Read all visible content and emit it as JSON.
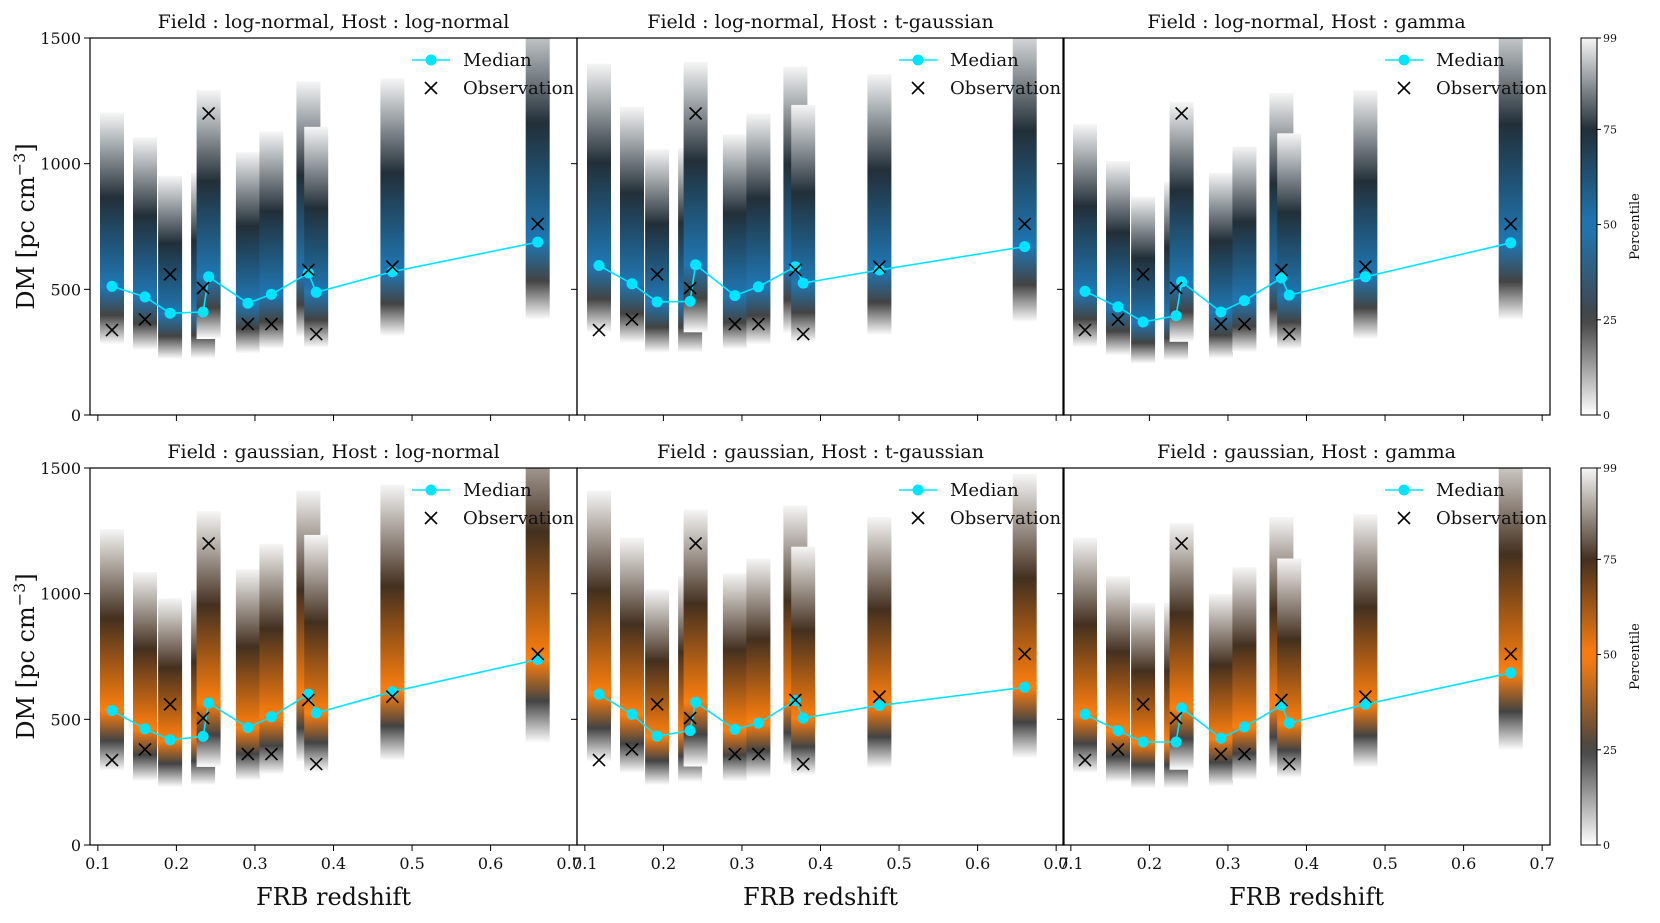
{
  "chart_data": {
    "type": "scatter",
    "layout": "2 rows x 3 columns",
    "xlabel": "FRB redshift",
    "ylabel": "DM [pc cm",
    "ylabel_exponent": "−3",
    "ylabel_close": "]",
    "xlim": [
      0.09,
      0.71
    ],
    "ylim": [
      0,
      1500
    ],
    "xticks": [
      0.1,
      0.2,
      0.3,
      0.4,
      0.5,
      0.6,
      0.7
    ],
    "xtick_labels": [
      "0.1",
      "0.2",
      "0.3",
      "0.4",
      "0.5",
      "0.6",
      "0.7"
    ],
    "yticks": [
      0,
      500,
      1000,
      1500
    ],
    "ytick_labels": [
      "0",
      "500",
      "1000",
      "1500"
    ],
    "redshift": [
      0.118,
      0.16,
      0.192,
      0.234,
      0.241,
      0.291,
      0.321,
      0.368,
      0.378,
      0.475,
      0.66
    ],
    "observation_dm": [
      338,
      380,
      560,
      505,
      1200,
      362,
      362,
      577,
      322,
      590,
      760
    ],
    "legend": {
      "median": "Median",
      "observation": "Observation"
    },
    "colorbars": [
      {
        "label": "Percentile",
        "color": "#1f77b4",
        "ticks": [
          0,
          25,
          50,
          75,
          99
        ],
        "tick_labels": [
          "0",
          "25",
          "50",
          "75",
          "99"
        ]
      },
      {
        "label": "Percentile",
        "color": "#ff7f0e",
        "ticks": [
          0,
          25,
          50,
          75,
          99
        ],
        "tick_labels": [
          "0",
          "25",
          "50",
          "75",
          "99"
        ]
      }
    ],
    "panels": [
      {
        "title": "Field :  log-normal, Host :  log-normal",
        "row": 0,
        "col": 0,
        "color": "#1f77b4",
        "median": [
          512,
          470,
          405,
          410,
          550,
          445,
          480,
          565,
          488,
          570,
          688
        ]
      },
      {
        "title": "Field :  log-normal, Host :  t-gaussian",
        "row": 0,
        "col": 1,
        "color": "#1f77b4",
        "median": [
          595,
          522,
          450,
          452,
          598,
          475,
          510,
          590,
          525,
          577,
          670
        ]
      },
      {
        "title": "Field :  log-normal, Host :  gamma",
        "row": 0,
        "col": 2,
        "color": "#1f77b4",
        "median": [
          492,
          430,
          370,
          395,
          530,
          410,
          455,
          545,
          477,
          550,
          685
        ]
      },
      {
        "title": "Field :  gaussian,  Host :  log-normal",
        "row": 1,
        "col": 0,
        "color": "#ff7f0e",
        "median": [
          535,
          462,
          418,
          432,
          565,
          467,
          510,
          600,
          525,
          610,
          738
        ]
      },
      {
        "title": "Field :  gaussian,  Host :  t-gaussian",
        "row": 1,
        "col": 1,
        "color": "#ff7f0e",
        "median": [
          600,
          520,
          433,
          455,
          568,
          460,
          485,
          575,
          505,
          555,
          628
        ]
      },
      {
        "title": "Field :  gaussian,  Host :  gamma",
        "row": 1,
        "col": 2,
        "color": "#ff7f0e",
        "median": [
          520,
          455,
          410,
          410,
          545,
          425,
          470,
          555,
          485,
          560,
          685
        ]
      }
    ]
  }
}
